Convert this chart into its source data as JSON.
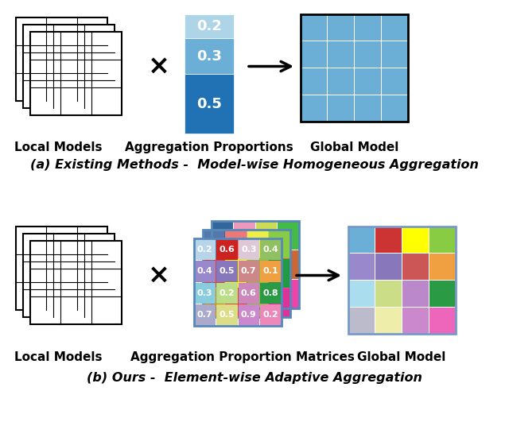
{
  "title_a": "(a) Existing Methods -  Model-wise Homogeneous Aggregation",
  "title_b": "(b) Ours -  Element-wise Adaptive Aggregation",
  "label_local": "Local Models",
  "label_agg_prop": "Aggregation Proportions",
  "label_agg_mat": "Aggregation Proportion Matrices",
  "label_global": "Global Model",
  "proportions": [
    0.2,
    0.3,
    0.5
  ],
  "prop_colors": [
    "#aed4e8",
    "#6baed6",
    "#2171b5"
  ],
  "global_color_a": "#6baed6",
  "matrix_values": [
    [
      "0.2",
      "0.6",
      "0.3",
      "0.4"
    ],
    [
      "0.4",
      "0.5",
      "0.7",
      "0.1"
    ],
    [
      "0.3",
      "0.2",
      "0.6",
      "0.8"
    ],
    [
      "0.7",
      "0.5",
      "0.9",
      "0.2"
    ]
  ],
  "matrix_colors": [
    [
      "#b8d4e8",
      "#cc2222",
      "#ddc8d8",
      "#90c060"
    ],
    [
      "#9988cc",
      "#8877bb",
      "#cc8888",
      "#f0a040"
    ],
    [
      "#88ccdd",
      "#bbdd88",
      "#cc88bb",
      "#2a9a44"
    ],
    [
      "#aaaacc",
      "#dddd88",
      "#cc88cc",
      "#ee88bb"
    ]
  ],
  "back1_colors_3rows": [
    [
      "#5577aa",
      "#ee7777",
      "#eeee44",
      "#88cc44"
    ],
    [
      "#cc4444",
      "#ffff00",
      "#88bb44",
      "#229944"
    ],
    [
      "#cc8800",
      "#dd4433",
      "#88bb44",
      "#dd3399"
    ]
  ],
  "back2_colors_3rows": [
    [
      "#336699",
      "#ee99bb",
      "#ccdd55",
      "#44bb44"
    ],
    [
      "#cc5555",
      "#eebb00",
      "#66aa33",
      "#cc6633"
    ],
    [
      "#9999dd",
      "#bb3399",
      "#bb7733",
      "#ee44aa"
    ]
  ],
  "global_colors_b": [
    [
      "#6baed6",
      "#cc3333",
      "#ffff00",
      "#88cc44"
    ],
    [
      "#9988cc",
      "#8877bb",
      "#cc5555",
      "#f0a040"
    ],
    [
      "#aaddee",
      "#ccdd88",
      "#bb88cc",
      "#2a9a44"
    ],
    [
      "#bbbbcc",
      "#eeeeaa",
      "#cc88cc",
      "#ee66bb"
    ]
  ],
  "bg_color": "#ffffff"
}
